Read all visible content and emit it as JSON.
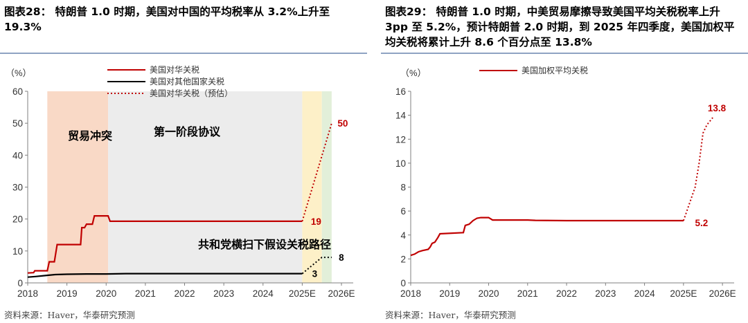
{
  "left": {
    "title": "图表28：  特朗普 1.0 时期，美国对中国的平均税率从 3.2%上升至19.3%",
    "source": "资料来源：Haver，华泰研究预测",
    "unit": "（%）",
    "legend": [
      "美国对华关税",
      "美国对其他国家关税",
      "美国对华关税（预估）"
    ],
    "annotations": {
      "trade_war": "贸易冲突",
      "phase_one": "第一阶段协议",
      "path": "共和党横扫下假设关税路径"
    },
    "colors": {
      "china": "#c00000",
      "others": "#000000",
      "trade_war_band": "#f9d9c6",
      "phase_one_band": "#ececec",
      "e2025_band": "#fdf0c8",
      "e2026_band": "#e2efd9"
    }
  },
  "right": {
    "title": "图表29：  特朗普 1.0 时期，中美贸易摩擦导致美国平均关税税率上升3pp 至 5.2%，预计特朗普 2.0 时期，到 2025 年四季度，美国加权平均关税将累计上升 8.6 个百分点至 13.8%",
    "source": "资料来源：Haver，华泰研究预测",
    "unit": "（%）",
    "legend": [
      "美国加权平均关税"
    ],
    "colors": {
      "line": "#c00000"
    }
  },
  "chart_data": [
    {
      "type": "line",
      "title": "",
      "xlabel": "",
      "ylabel": "（%）",
      "xlim": [
        2018,
        2026.3
      ],
      "ylim": [
        0,
        60
      ],
      "x_ticks": [
        "2018",
        "2019",
        "2020",
        "2021",
        "2022",
        "2023",
        "2024",
        "2025E",
        "2026E"
      ],
      "y_ticks": [
        0,
        10,
        20,
        30,
        40,
        50,
        60
      ],
      "grid": false,
      "legend_position": "top",
      "shaded_periods": [
        {
          "label": "贸易冲突",
          "from": 2018.5,
          "to": 2020.05
        },
        {
          "label": "第一阶段协议",
          "from": 2020.05,
          "to": 2025.0
        },
        {
          "label": "2025E",
          "from": 2025.0,
          "to": 2025.5
        },
        {
          "label": "2026E",
          "from": 2025.5,
          "to": 2025.75
        }
      ],
      "series": [
        {
          "name": "美国对华关税",
          "style": "solid",
          "x": [
            2018.0,
            2018.15,
            2018.18,
            2018.5,
            2018.55,
            2018.68,
            2018.75,
            2019.35,
            2019.38,
            2019.45,
            2019.5,
            2019.65,
            2019.7,
            2020.05,
            2020.1,
            2021.5,
            2025.0
          ],
          "y": [
            3.1,
            3.2,
            3.8,
            3.8,
            6.6,
            6.6,
            12.0,
            12.0,
            17.3,
            17.3,
            18.4,
            18.4,
            21.0,
            21.0,
            19.3,
            19.3,
            19.3
          ],
          "end_label": "19"
        },
        {
          "name": "美国对其他国家关税",
          "style": "solid",
          "x": [
            2018.0,
            2018.2,
            2018.45,
            2018.7,
            2019.0,
            2019.5,
            2020.0,
            2020.5,
            2021.0,
            2022.0,
            2023.0,
            2024.0,
            2025.0
          ],
          "y": [
            1.8,
            2.0,
            2.3,
            2.6,
            2.7,
            2.8,
            2.8,
            2.9,
            2.9,
            2.9,
            2.9,
            2.9,
            2.9
          ],
          "end_label": "3"
        },
        {
          "name": "美国对华关税（预估）",
          "style": "dotted",
          "x": [
            2025.0,
            2025.75
          ],
          "y": [
            19.3,
            50.0
          ],
          "end_label": "50"
        },
        {
          "name": "",
          "style": "dotted",
          "x": [
            2025.0,
            2025.5,
            2025.75
          ],
          "y": [
            2.9,
            8.0,
            8.0
          ],
          "end_label": "8"
        }
      ]
    },
    {
      "type": "line",
      "title": "",
      "xlabel": "",
      "ylabel": "（%）",
      "xlim": [
        2018,
        2026.3
      ],
      "ylim": [
        0,
        16
      ],
      "x_ticks": [
        "2018",
        "2019",
        "2020",
        "2021",
        "2022",
        "2023",
        "2024",
        "2025E",
        "2026E"
      ],
      "y_ticks": [
        0,
        2,
        4,
        6,
        8,
        10,
        12,
        14,
        16
      ],
      "grid": false,
      "legend_position": "top",
      "series": [
        {
          "name": "美国加权平均关税",
          "style": "solid",
          "x": [
            2018.0,
            2018.1,
            2018.2,
            2018.3,
            2018.45,
            2018.5,
            2018.55,
            2018.62,
            2018.7,
            2018.75,
            2019.35,
            2019.4,
            2019.5,
            2019.6,
            2019.7,
            2019.8,
            2020.0,
            2020.1,
            2021.0,
            2021.2,
            2022.0,
            2023.0,
            2024.0,
            2025.0
          ],
          "y": [
            2.3,
            2.4,
            2.6,
            2.7,
            2.8,
            3.0,
            3.3,
            3.4,
            3.8,
            4.1,
            4.2,
            4.8,
            4.9,
            5.2,
            5.4,
            5.45,
            5.45,
            5.25,
            5.25,
            5.22,
            5.2,
            5.2,
            5.2,
            5.2
          ],
          "end_label": "5.2"
        },
        {
          "name": "",
          "style": "dotted",
          "x": [
            2025.0,
            2025.3,
            2025.4,
            2025.5,
            2025.6,
            2025.75
          ],
          "y": [
            5.2,
            8.0,
            10.0,
            12.5,
            13.2,
            13.8
          ],
          "end_label": "13.8"
        }
      ]
    }
  ]
}
